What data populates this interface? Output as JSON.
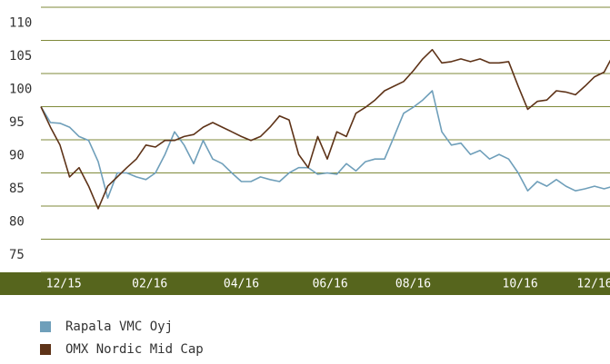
{
  "chart_data": {
    "type": "line",
    "xlim": [
      0,
      60
    ],
    "xticks": [
      {
        "value": 2.4,
        "label": "12/15"
      },
      {
        "value": 11.4,
        "label": "02/16"
      },
      {
        "value": 21,
        "label": "04/16"
      },
      {
        "value": 30.3,
        "label": "06/16"
      },
      {
        "value": 39,
        "label": "08/16"
      },
      {
        "value": 50.2,
        "label": "10/16"
      },
      {
        "value": 58,
        "label": "12/16"
      }
    ],
    "ylim": [
      75,
      115
    ],
    "yticks": [
      75,
      80,
      85,
      90,
      95,
      100,
      105,
      110
    ],
    "grid": true,
    "series": [
      {
        "name": "Rapala VMC Oyj",
        "color": "#6f9fba",
        "values": [
          100,
          97.6,
          97.5,
          96.9,
          95.5,
          94.9,
          91.7,
          86.2,
          90,
          90,
          89.4,
          89,
          90,
          92.8,
          96.2,
          94.2,
          91.4,
          94.9,
          92.1,
          91.4,
          90,
          88.7,
          88.7,
          89.4,
          89,
          88.7,
          90,
          90.8,
          90.8,
          89.8,
          90,
          89.8,
          91.4,
          90.3,
          91.7,
          92.1,
          92.1,
          95.5,
          99,
          99.9,
          101,
          102.4,
          96.2,
          94.2,
          94.5,
          92.8,
          93.4,
          92.1,
          92.8,
          92.1,
          90,
          87.3,
          88.7,
          88,
          89,
          88,
          87.3,
          87.6,
          88,
          87.6,
          88
        ]
      },
      {
        "name": "OMX Nordic Mid Cap",
        "color": "#5e3318",
        "values": [
          100,
          96.9,
          94.2,
          89.4,
          90.8,
          88,
          84.6,
          88,
          89.4,
          90.8,
          92.1,
          94.2,
          93.9,
          94.9,
          94.9,
          95.5,
          95.8,
          96.9,
          97.6,
          96.9,
          96.2,
          95.5,
          94.9,
          95.5,
          96.9,
          98.6,
          98,
          92.8,
          90.8,
          95.5,
          92.1,
          96.2,
          95.5,
          99,
          99.9,
          101,
          102.4,
          103.1,
          103.8,
          105.4,
          107.2,
          108.6,
          106.6,
          106.8,
          107.2,
          106.8,
          107.2,
          106.6,
          106.6,
          106.8,
          103.1,
          99.6,
          100.8,
          101,
          102.4,
          102.2,
          101.8,
          103.1,
          104.5,
          105.2,
          107.9
        ]
      }
    ]
  }
}
